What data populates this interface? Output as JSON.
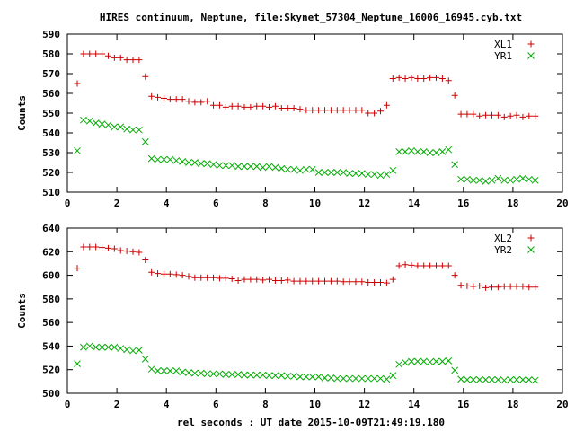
{
  "title": "HIRES continuum, Neptune, file:Skynet_57304_Neptune_16006_16945.cyb.txt",
  "xlabel": "rel seconds : UT date 2015-10-09T21:49:19.180",
  "chart_data": [
    {
      "type": "scatter",
      "ylabel": "Counts",
      "xlim": [
        0,
        20
      ],
      "ylim": [
        510,
        590
      ],
      "xticks": [
        0,
        2,
        4,
        6,
        8,
        10,
        12,
        14,
        16,
        18,
        20
      ],
      "yticks": [
        510,
        520,
        530,
        540,
        550,
        560,
        570,
        580,
        590
      ],
      "legend": "top-right",
      "series": [
        {
          "name": "XL1",
          "marker": "plus",
          "color": "#cc0000",
          "x": [
            0.4,
            0.65,
            0.9,
            1.15,
            1.4,
            1.65,
            1.9,
            2.15,
            2.4,
            2.65,
            2.9,
            3.15,
            3.4,
            3.65,
            3.9,
            4.15,
            4.4,
            4.65,
            4.9,
            5.15,
            5.4,
            5.65,
            5.9,
            6.15,
            6.4,
            6.65,
            6.9,
            7.15,
            7.4,
            7.65,
            7.9,
            8.15,
            8.4,
            8.65,
            8.9,
            9.15,
            9.4,
            9.65,
            9.9,
            10.15,
            10.4,
            10.65,
            10.9,
            11.15,
            11.4,
            11.65,
            11.9,
            12.15,
            12.4,
            12.65,
            12.9,
            13.15,
            13.4,
            13.65,
            13.9,
            14.15,
            14.4,
            14.65,
            14.9,
            15.15,
            15.4,
            15.65,
            15.9,
            16.15,
            16.4,
            16.65,
            16.9,
            17.15,
            17.4,
            17.65,
            17.9,
            18.15,
            18.4,
            18.65,
            18.9
          ],
          "y": [
            565,
            580,
            580,
            580,
            580,
            579,
            578,
            578,
            577,
            577,
            577,
            568.5,
            558.5,
            558,
            557.5,
            557,
            557,
            557,
            556,
            555.5,
            555.5,
            556,
            554,
            554,
            553,
            553.5,
            553.5,
            553,
            553,
            553.5,
            553.5,
            553,
            553.5,
            552.5,
            552.5,
            552.5,
            552,
            551.5,
            551.5,
            551.5,
            551.5,
            551.5,
            551.5,
            551.5,
            551.5,
            551.5,
            551.5,
            550,
            550,
            551,
            554,
            567.5,
            568,
            567.5,
            568,
            567.5,
            567.5,
            568,
            568,
            567.5,
            566.5,
            559,
            549.5,
            549.5,
            549.5,
            548.5,
            549,
            549,
            549,
            548,
            548.5,
            549,
            548,
            548.5,
            548.5
          ]
        },
        {
          "name": "YR1",
          "marker": "cross",
          "color": "#00aa00",
          "x": [
            0.4,
            0.65,
            0.9,
            1.15,
            1.4,
            1.65,
            1.9,
            2.15,
            2.4,
            2.65,
            2.9,
            3.15,
            3.4,
            3.65,
            3.9,
            4.15,
            4.4,
            4.65,
            4.9,
            5.15,
            5.4,
            5.65,
            5.9,
            6.15,
            6.4,
            6.65,
            6.9,
            7.15,
            7.4,
            7.65,
            7.9,
            8.15,
            8.4,
            8.65,
            8.9,
            9.15,
            9.4,
            9.65,
            9.9,
            10.15,
            10.4,
            10.65,
            10.9,
            11.15,
            11.4,
            11.65,
            11.9,
            12.15,
            12.4,
            12.65,
            12.9,
            13.15,
            13.4,
            13.65,
            13.9,
            14.15,
            14.4,
            14.65,
            14.9,
            15.15,
            15.4,
            15.65,
            15.9,
            16.15,
            16.4,
            16.65,
            16.9,
            17.15,
            17.4,
            17.65,
            17.9,
            18.15,
            18.4,
            18.65,
            18.9
          ],
          "y": [
            531,
            546.5,
            546,
            545,
            544.5,
            544,
            543,
            543,
            542,
            541.5,
            541.5,
            535.5,
            527,
            526.5,
            526.5,
            526.5,
            526,
            525.5,
            525,
            525,
            524.5,
            524.5,
            524,
            523.5,
            523.5,
            523.5,
            523,
            523,
            523,
            523,
            522.5,
            523,
            522.5,
            522,
            521.5,
            521.5,
            521,
            521.5,
            521.5,
            520,
            520,
            520,
            520,
            520,
            519.5,
            519.5,
            519.5,
            519,
            519,
            518.5,
            519,
            521,
            530.5,
            530.5,
            531,
            530.5,
            530.5,
            530,
            530,
            530.5,
            531.5,
            524,
            516.5,
            516.5,
            516,
            516,
            515.5,
            516,
            517,
            516,
            516,
            516.5,
            517,
            516.5,
            516
          ]
        }
      ]
    },
    {
      "type": "scatter",
      "ylabel": "Counts",
      "xlim": [
        0,
        20
      ],
      "ylim": [
        500,
        640
      ],
      "xticks": [
        0,
        2,
        4,
        6,
        8,
        10,
        12,
        14,
        16,
        18,
        20
      ],
      "yticks": [
        500,
        520,
        540,
        560,
        580,
        600,
        620,
        640
      ],
      "legend": "top-right",
      "series": [
        {
          "name": "XL2",
          "marker": "plus",
          "color": "#cc0000",
          "x": [
            0.4,
            0.65,
            0.9,
            1.15,
            1.4,
            1.65,
            1.9,
            2.15,
            2.4,
            2.65,
            2.9,
            3.15,
            3.4,
            3.65,
            3.9,
            4.15,
            4.4,
            4.65,
            4.9,
            5.15,
            5.4,
            5.65,
            5.9,
            6.15,
            6.4,
            6.65,
            6.9,
            7.15,
            7.4,
            7.65,
            7.9,
            8.15,
            8.4,
            8.65,
            8.9,
            9.15,
            9.4,
            9.65,
            9.9,
            10.15,
            10.4,
            10.65,
            10.9,
            11.15,
            11.4,
            11.65,
            11.9,
            12.15,
            12.4,
            12.65,
            12.9,
            13.15,
            13.4,
            13.65,
            13.9,
            14.15,
            14.4,
            14.65,
            14.9,
            15.15,
            15.4,
            15.65,
            15.9,
            16.15,
            16.4,
            16.65,
            16.9,
            17.15,
            17.4,
            17.65,
            17.9,
            18.15,
            18.4,
            18.65,
            18.9
          ],
          "y": [
            606,
            624,
            624,
            624,
            623.5,
            623,
            622.5,
            621,
            620.5,
            620,
            619.5,
            613,
            602.5,
            601.5,
            601,
            601,
            600.5,
            600,
            599,
            598,
            598,
            598,
            598,
            597.5,
            597.5,
            597,
            595.5,
            596.5,
            596.5,
            596.5,
            596,
            596.5,
            595.5,
            595.5,
            596,
            595,
            595,
            595,
            595,
            595,
            595,
            595,
            595,
            594.5,
            594.5,
            594.5,
            594.5,
            594,
            594,
            594,
            593.5,
            596.5,
            608,
            609,
            608.5,
            608,
            608,
            608,
            608,
            608,
            608,
            600,
            591.5,
            591,
            590.5,
            591,
            589.5,
            590,
            590,
            590.5,
            590.5,
            590.5,
            590.5,
            590,
            590
          ]
        },
        {
          "name": "YR2",
          "marker": "cross",
          "color": "#00aa00",
          "x": [
            0.4,
            0.65,
            0.9,
            1.15,
            1.4,
            1.65,
            1.9,
            2.15,
            2.4,
            2.65,
            2.9,
            3.15,
            3.4,
            3.65,
            3.9,
            4.15,
            4.4,
            4.65,
            4.9,
            5.15,
            5.4,
            5.65,
            5.9,
            6.15,
            6.4,
            6.65,
            6.9,
            7.15,
            7.4,
            7.65,
            7.9,
            8.15,
            8.4,
            8.65,
            8.9,
            9.15,
            9.4,
            9.65,
            9.9,
            10.15,
            10.4,
            10.65,
            10.9,
            11.15,
            11.4,
            11.65,
            11.9,
            12.15,
            12.4,
            12.65,
            12.9,
            13.15,
            13.4,
            13.65,
            13.9,
            14.15,
            14.4,
            14.65,
            14.9,
            15.15,
            15.4,
            15.65,
            15.9,
            16.15,
            16.4,
            16.65,
            16.9,
            17.15,
            17.4,
            17.65,
            17.9,
            18.15,
            18.4,
            18.65,
            18.9
          ],
          "y": [
            525,
            539,
            540,
            539,
            539,
            539,
            539,
            538,
            537,
            536,
            536.5,
            529,
            520.5,
            519,
            519,
            519,
            519,
            518,
            517.5,
            517,
            517,
            516.5,
            516.5,
            516.5,
            516,
            516,
            516,
            515.5,
            515.5,
            515.5,
            515.5,
            515,
            515,
            515,
            514.5,
            514.5,
            514,
            514,
            514,
            514,
            513,
            513,
            512.5,
            512.5,
            512.5,
            512.5,
            512.5,
            512.5,
            512.5,
            512.5,
            512,
            515,
            524.5,
            526,
            527,
            527,
            527,
            526.5,
            527,
            527,
            527.5,
            519.5,
            512,
            511.5,
            511.5,
            511.5,
            511.5,
            511.5,
            511.5,
            511,
            511.5,
            511.5,
            511.5,
            511.5,
            511
          ]
        }
      ]
    }
  ]
}
